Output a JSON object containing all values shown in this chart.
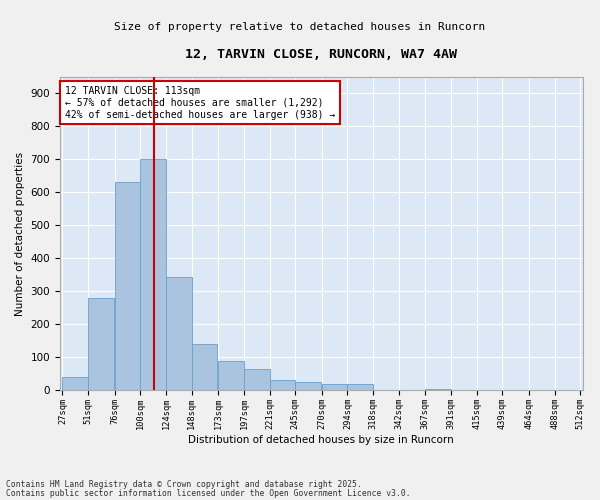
{
  "title": "12, TARVIN CLOSE, RUNCORN, WA7 4AW",
  "subtitle": "Size of property relative to detached houses in Runcorn",
  "xlabel": "Distribution of detached houses by size in Runcorn",
  "ylabel": "Number of detached properties",
  "footer1": "Contains HM Land Registry data © Crown copyright and database right 2025.",
  "footer2": "Contains public sector information licensed under the Open Government Licence v3.0.",
  "annotation_title": "12 TARVIN CLOSE: 113sqm",
  "annotation_line1": "← 57% of detached houses are smaller (1,292)",
  "annotation_line2": "42% of semi-detached houses are larger (938) →",
  "property_size": 113,
  "bins": [
    27,
    51,
    76,
    100,
    124,
    148,
    173,
    197,
    221,
    245,
    270,
    294,
    318,
    342,
    367,
    391,
    415,
    439,
    464,
    488,
    512
  ],
  "counts": [
    40,
    280,
    630,
    700,
    345,
    140,
    90,
    65,
    30,
    25,
    20,
    20,
    0,
    0,
    5,
    0,
    0,
    0,
    0,
    0
  ],
  "bar_color": "#aac4e0",
  "bar_edge_color": "#6a9fc8",
  "line_color": "#cc0000",
  "background_color": "#dce8f5",
  "fig_background": "#f0f0f0",
  "annotation_box_color": "#ffffff",
  "annotation_box_edge": "#cc0000",
  "grid_color": "#ffffff",
  "ylim": [
    0,
    950
  ],
  "yticks": [
    0,
    100,
    200,
    300,
    400,
    500,
    600,
    700,
    800,
    900
  ]
}
